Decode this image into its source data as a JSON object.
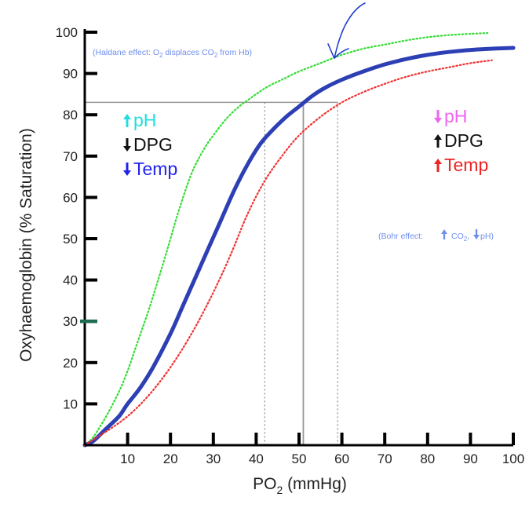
{
  "chart_data": {
    "type": "line",
    "xlabel": "PO",
    "xlabel_sub": "2",
    "xlabel_unit": " (mmHg)",
    "ylabel": "Oxyhaemoglobin (% Saturation)",
    "xlim": [
      0,
      100
    ],
    "ylim": [
      0,
      100
    ],
    "x_ticks": [
      10,
      20,
      30,
      40,
      50,
      60,
      70,
      80,
      90,
      100
    ],
    "y_ticks": [
      10,
      20,
      30,
      40,
      50,
      60,
      70,
      80,
      90,
      100
    ],
    "grid": false,
    "series": [
      {
        "key": "left",
        "color": "#33dd33",
        "style": "dotted",
        "x": [
          0,
          2,
          5,
          8,
          10,
          12,
          15,
          18,
          20,
          22,
          25,
          28,
          30,
          33,
          36,
          38,
          40,
          43,
          46,
          50,
          55,
          60,
          65,
          70,
          75,
          80,
          85,
          90,
          94
        ],
        "y": [
          0,
          2,
          7,
          13,
          18,
          24,
          33,
          43,
          50,
          57,
          66,
          72,
          75,
          79,
          82,
          83.5,
          85,
          87,
          88.5,
          90.5,
          92.5,
          94.5,
          96,
          97,
          98,
          98.8,
          99.3,
          99.6,
          99.8
        ]
      },
      {
        "key": "normal",
        "color": "#2d3fb4",
        "style": "solid",
        "x": [
          0,
          2,
          5,
          8,
          10,
          13,
          16,
          20,
          23,
          26,
          29,
          32,
          35,
          38,
          41,
          44,
          47,
          50,
          53,
          56,
          60,
          65,
          70,
          75,
          80,
          85,
          90,
          95,
          100
        ],
        "y": [
          0,
          1,
          4,
          7,
          10,
          14,
          19,
          27,
          34,
          41,
          48,
          55,
          62,
          68,
          73,
          76.5,
          79.5,
          82,
          84.5,
          86.5,
          88.5,
          90.5,
          92.2,
          93.5,
          94.5,
          95.2,
          95.7,
          96,
          96.2
        ]
      },
      {
        "key": "right",
        "color": "#ee3333",
        "style": "dotted",
        "x": [
          0,
          3,
          6,
          10,
          14,
          18,
          22,
          26,
          30,
          34,
          38,
          42,
          46,
          50,
          55,
          60,
          65,
          70,
          75,
          80,
          85,
          90,
          95
        ],
        "y": [
          0,
          2,
          4,
          7,
          11,
          16,
          22,
          29,
          37,
          46,
          56,
          64,
          70,
          75,
          79.5,
          83,
          85.5,
          87.5,
          89.2,
          90.5,
          91.5,
          92.5,
          93.2
        ]
      }
    ],
    "reference_y": 83,
    "reference_x": [
      42,
      51,
      59
    ],
    "left_legend": [
      {
        "arrow": "up",
        "label": "pH",
        "color": "#22dddd",
        "arrow_color": "#22dddd"
      },
      {
        "arrow": "down",
        "label": "DPG",
        "color": "#111111",
        "arrow_color": "#111111"
      },
      {
        "arrow": "down",
        "label": "Temp",
        "color": "#2222ee",
        "arrow_color": "#2222ee"
      }
    ],
    "right_legend": [
      {
        "arrow": "down",
        "label": "pH",
        "color": "#ee66ee",
        "arrow_color": "#ee66ee"
      },
      {
        "arrow": "up",
        "label": "DPG",
        "color": "#111111",
        "arrow_color": "#111111"
      },
      {
        "arrow": "up",
        "label": "Temp",
        "color": "#ee2222",
        "arrow_color": "#ee2222"
      }
    ],
    "annotations": {
      "haldane": {
        "pre": "(Haldane effect: O",
        "sub1": "2",
        "mid": " displaces CO",
        "sub2": "2",
        "post": " from Hb)",
        "color": "#6f8ef0"
      },
      "bohr": {
        "pre": "(Bohr effect:",
        "co2": "CO",
        "sub": "2",
        "sep": ",",
        "ph": "pH",
        "post": ")",
        "color": "#6f8ef0"
      }
    },
    "highlight_tick_y": 30,
    "highlight_tick_color": "#1f6b4f",
    "pen_mark_color": "#1f3fd0"
  }
}
